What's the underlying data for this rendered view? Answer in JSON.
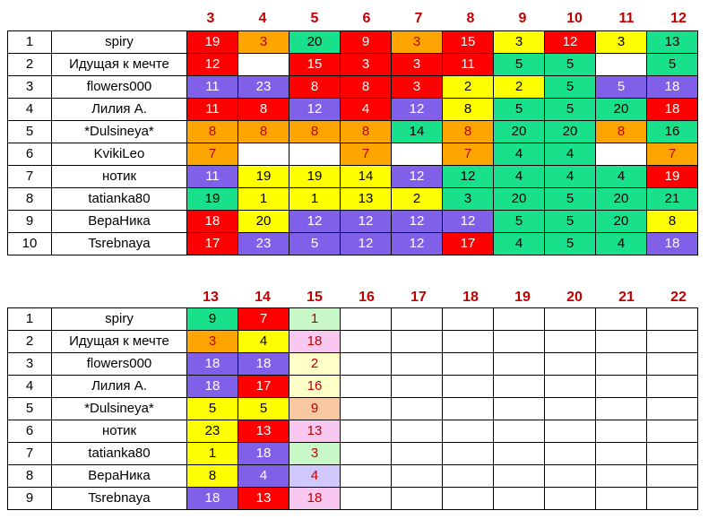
{
  "table1": {
    "headers": [
      "3",
      "4",
      "5",
      "6",
      "7",
      "8",
      "9",
      "10",
      "11",
      "12"
    ],
    "rows": [
      {
        "rank": "1",
        "name": "spiry",
        "cells": [
          {
            "v": "19",
            "c": "red"
          },
          {
            "v": "3",
            "c": "orange"
          },
          {
            "v": "20",
            "c": "green"
          },
          {
            "v": "9",
            "c": "red"
          },
          {
            "v": "3",
            "c": "orange"
          },
          {
            "v": "15",
            "c": "red"
          },
          {
            "v": "3",
            "c": "yellow"
          },
          {
            "v": "12",
            "c": "red"
          },
          {
            "v": "3",
            "c": "yellow"
          },
          {
            "v": "13",
            "c": "green"
          }
        ]
      },
      {
        "rank": "2",
        "name": "Идущая к мечте",
        "cells": [
          {
            "v": "12",
            "c": "red"
          },
          {
            "v": "",
            "c": "empty"
          },
          {
            "v": "15",
            "c": "red"
          },
          {
            "v": "3",
            "c": "red"
          },
          {
            "v": "3",
            "c": "red"
          },
          {
            "v": "11",
            "c": "red"
          },
          {
            "v": "5",
            "c": "green"
          },
          {
            "v": "5",
            "c": "green"
          },
          {
            "v": "",
            "c": "empty"
          },
          {
            "v": "5",
            "c": "green"
          }
        ]
      },
      {
        "rank": "3",
        "name": "flowers000",
        "cells": [
          {
            "v": "11",
            "c": "purple"
          },
          {
            "v": "23",
            "c": "purple"
          },
          {
            "v": "8",
            "c": "red"
          },
          {
            "v": "8",
            "c": "red"
          },
          {
            "v": "3",
            "c": "red"
          },
          {
            "v": "2",
            "c": "yellow"
          },
          {
            "v": "2",
            "c": "yellow"
          },
          {
            "v": "5",
            "c": "green"
          },
          {
            "v": "5",
            "c": "purple"
          },
          {
            "v": "18",
            "c": "purple"
          }
        ]
      },
      {
        "rank": "4",
        "name": "Лилия А.",
        "cells": [
          {
            "v": "11",
            "c": "red"
          },
          {
            "v": "8",
            "c": "red"
          },
          {
            "v": "12",
            "c": "purple"
          },
          {
            "v": "4",
            "c": "red"
          },
          {
            "v": "12",
            "c": "purple"
          },
          {
            "v": "8",
            "c": "yellow"
          },
          {
            "v": "5",
            "c": "green"
          },
          {
            "v": "5",
            "c": "green"
          },
          {
            "v": "20",
            "c": "green"
          },
          {
            "v": "18",
            "c": "red"
          }
        ]
      },
      {
        "rank": "5",
        "name": "*Dulsineya*",
        "cells": [
          {
            "v": "8",
            "c": "orange"
          },
          {
            "v": "8",
            "c": "orange"
          },
          {
            "v": "8",
            "c": "orange"
          },
          {
            "v": "8",
            "c": "orange"
          },
          {
            "v": "14",
            "c": "green"
          },
          {
            "v": "8",
            "c": "orange"
          },
          {
            "v": "20",
            "c": "green"
          },
          {
            "v": "20",
            "c": "green"
          },
          {
            "v": "8",
            "c": "orange"
          },
          {
            "v": "16",
            "c": "green"
          }
        ]
      },
      {
        "rank": "6",
        "name": "KvikiLeo",
        "cells": [
          {
            "v": "7",
            "c": "orange"
          },
          {
            "v": "",
            "c": "empty"
          },
          {
            "v": "",
            "c": "empty"
          },
          {
            "v": "7",
            "c": "orange"
          },
          {
            "v": "",
            "c": "empty"
          },
          {
            "v": "7",
            "c": "orange"
          },
          {
            "v": "4",
            "c": "green"
          },
          {
            "v": "4",
            "c": "green"
          },
          {
            "v": "",
            "c": "empty"
          },
          {
            "v": "7",
            "c": "orange"
          }
        ]
      },
      {
        "rank": "7",
        "name": "нотик",
        "cells": [
          {
            "v": "11",
            "c": "purple"
          },
          {
            "v": "19",
            "c": "yellow"
          },
          {
            "v": "19",
            "c": "yellow"
          },
          {
            "v": "14",
            "c": "yellow"
          },
          {
            "v": "12",
            "c": "purple"
          },
          {
            "v": "12",
            "c": "green"
          },
          {
            "v": "4",
            "c": "green"
          },
          {
            "v": "4",
            "c": "green"
          },
          {
            "v": "4",
            "c": "green"
          },
          {
            "v": "19",
            "c": "red"
          }
        ]
      },
      {
        "rank": "8",
        "name": "tatianka80",
        "cells": [
          {
            "v": "19",
            "c": "green"
          },
          {
            "v": "1",
            "c": "yellow"
          },
          {
            "v": "1",
            "c": "yellow"
          },
          {
            "v": "13",
            "c": "yellow"
          },
          {
            "v": "2",
            "c": "yellow"
          },
          {
            "v": "3",
            "c": "green"
          },
          {
            "v": "20",
            "c": "green"
          },
          {
            "v": "5",
            "c": "green"
          },
          {
            "v": "20",
            "c": "green"
          },
          {
            "v": "21",
            "c": "green"
          }
        ]
      },
      {
        "rank": "9",
        "name": "ВераНика",
        "cells": [
          {
            "v": "18",
            "c": "red"
          },
          {
            "v": "20",
            "c": "yellow"
          },
          {
            "v": "12",
            "c": "purple"
          },
          {
            "v": "12",
            "c": "purple"
          },
          {
            "v": "12",
            "c": "purple"
          },
          {
            "v": "12",
            "c": "purple"
          },
          {
            "v": "5",
            "c": "green"
          },
          {
            "v": "5",
            "c": "green"
          },
          {
            "v": "20",
            "c": "green"
          },
          {
            "v": "8",
            "c": "yellow"
          }
        ]
      },
      {
        "rank": "10",
        "name": "Tsrebnaya",
        "cells": [
          {
            "v": "17",
            "c": "red"
          },
          {
            "v": "23",
            "c": "purple"
          },
          {
            "v": "5",
            "c": "purple"
          },
          {
            "v": "12",
            "c": "purple"
          },
          {
            "v": "12",
            "c": "purple"
          },
          {
            "v": "17",
            "c": "red"
          },
          {
            "v": "4",
            "c": "green"
          },
          {
            "v": "5",
            "c": "green"
          },
          {
            "v": "4",
            "c": "green"
          },
          {
            "v": "18",
            "c": "purple"
          }
        ]
      }
    ]
  },
  "table2": {
    "headers": [
      "13",
      "14",
      "15",
      "16",
      "17",
      "18",
      "19",
      "20",
      "21",
      "22"
    ],
    "rows": [
      {
        "rank": "1",
        "name": "spiry",
        "cells": [
          {
            "v": "9",
            "c": "green"
          },
          {
            "v": "7",
            "c": "red"
          },
          {
            "v": "1",
            "c": "lgreen"
          },
          {
            "v": "",
            "c": "empty"
          },
          {
            "v": "",
            "c": "empty"
          },
          {
            "v": "",
            "c": "empty"
          },
          {
            "v": "",
            "c": "empty"
          },
          {
            "v": "",
            "c": "empty"
          },
          {
            "v": "",
            "c": "empty"
          },
          {
            "v": "",
            "c": "empty"
          }
        ]
      },
      {
        "rank": "2",
        "name": "Идущая к мечте",
        "cells": [
          {
            "v": "3",
            "c": "orange"
          },
          {
            "v": "4",
            "c": "yellow"
          },
          {
            "v": "18",
            "c": "pink"
          },
          {
            "v": "",
            "c": "empty"
          },
          {
            "v": "",
            "c": "empty"
          },
          {
            "v": "",
            "c": "empty"
          },
          {
            "v": "",
            "c": "empty"
          },
          {
            "v": "",
            "c": "empty"
          },
          {
            "v": "",
            "c": "empty"
          },
          {
            "v": "",
            "c": "empty"
          }
        ]
      },
      {
        "rank": "3",
        "name": "flowers000",
        "cells": [
          {
            "v": "18",
            "c": "purple"
          },
          {
            "v": "18",
            "c": "purple"
          },
          {
            "v": "2",
            "c": "lyellow"
          },
          {
            "v": "",
            "c": "empty"
          },
          {
            "v": "",
            "c": "empty"
          },
          {
            "v": "",
            "c": "empty"
          },
          {
            "v": "",
            "c": "empty"
          },
          {
            "v": "",
            "c": "empty"
          },
          {
            "v": "",
            "c": "empty"
          },
          {
            "v": "",
            "c": "empty"
          }
        ]
      },
      {
        "rank": "4",
        "name": "Лилия А.",
        "cells": [
          {
            "v": "18",
            "c": "purple"
          },
          {
            "v": "17",
            "c": "red"
          },
          {
            "v": "16",
            "c": "lyellow"
          },
          {
            "v": "",
            "c": "empty"
          },
          {
            "v": "",
            "c": "empty"
          },
          {
            "v": "",
            "c": "empty"
          },
          {
            "v": "",
            "c": "empty"
          },
          {
            "v": "",
            "c": "empty"
          },
          {
            "v": "",
            "c": "empty"
          },
          {
            "v": "",
            "c": "empty"
          }
        ]
      },
      {
        "rank": "5",
        "name": "*Dulsineya*",
        "cells": [
          {
            "v": "5",
            "c": "yellow"
          },
          {
            "v": "5",
            "c": "yellow"
          },
          {
            "v": "9",
            "c": "peach"
          },
          {
            "v": "",
            "c": "empty"
          },
          {
            "v": "",
            "c": "empty"
          },
          {
            "v": "",
            "c": "empty"
          },
          {
            "v": "",
            "c": "empty"
          },
          {
            "v": "",
            "c": "empty"
          },
          {
            "v": "",
            "c": "empty"
          },
          {
            "v": "",
            "c": "empty"
          }
        ]
      },
      {
        "rank": "6",
        "name": "нотик",
        "cells": [
          {
            "v": "23",
            "c": "yellow"
          },
          {
            "v": "13",
            "c": "red"
          },
          {
            "v": "13",
            "c": "pink"
          },
          {
            "v": "",
            "c": "empty"
          },
          {
            "v": "",
            "c": "empty"
          },
          {
            "v": "",
            "c": "empty"
          },
          {
            "v": "",
            "c": "empty"
          },
          {
            "v": "",
            "c": "empty"
          },
          {
            "v": "",
            "c": "empty"
          },
          {
            "v": "",
            "c": "empty"
          }
        ]
      },
      {
        "rank": "7",
        "name": "tatianka80",
        "cells": [
          {
            "v": "1",
            "c": "yellow"
          },
          {
            "v": "18",
            "c": "purple"
          },
          {
            "v": "3",
            "c": "lgreen"
          },
          {
            "v": "",
            "c": "empty"
          },
          {
            "v": "",
            "c": "empty"
          },
          {
            "v": "",
            "c": "empty"
          },
          {
            "v": "",
            "c": "empty"
          },
          {
            "v": "",
            "c": "empty"
          },
          {
            "v": "",
            "c": "empty"
          },
          {
            "v": "",
            "c": "empty"
          }
        ]
      },
      {
        "rank": "8",
        "name": "ВераНика",
        "cells": [
          {
            "v": "8",
            "c": "yellow"
          },
          {
            "v": "4",
            "c": "purple"
          },
          {
            "v": "4",
            "c": "lpurple"
          },
          {
            "v": "",
            "c": "empty"
          },
          {
            "v": "",
            "c": "empty"
          },
          {
            "v": "",
            "c": "empty"
          },
          {
            "v": "",
            "c": "empty"
          },
          {
            "v": "",
            "c": "empty"
          },
          {
            "v": "",
            "c": "empty"
          },
          {
            "v": "",
            "c": "empty"
          }
        ]
      },
      {
        "rank": "9",
        "name": "Tsrebnaya",
        "cells": [
          {
            "v": "18",
            "c": "purple"
          },
          {
            "v": "13",
            "c": "red"
          },
          {
            "v": "18",
            "c": "pink"
          },
          {
            "v": "",
            "c": "empty"
          },
          {
            "v": "",
            "c": "empty"
          },
          {
            "v": "",
            "c": "empty"
          },
          {
            "v": "",
            "c": "empty"
          },
          {
            "v": "",
            "c": "empty"
          },
          {
            "v": "",
            "c": "empty"
          },
          {
            "v": "",
            "c": "empty"
          }
        ]
      }
    ]
  }
}
